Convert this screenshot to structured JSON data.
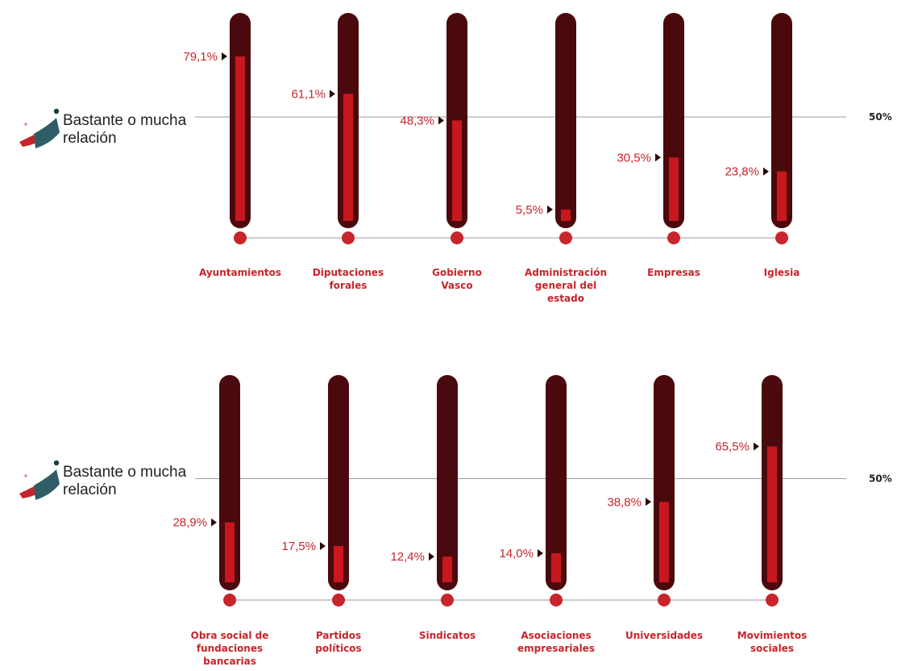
{
  "colors": {
    "tube": "#4a0a0d",
    "fill": "#c8181e",
    "accent": "#c8242b",
    "text_dark": "#222222",
    "line": "#999999",
    "arrow": "#2a0608"
  },
  "chart_data": [
    {
      "type": "bar",
      "legend": "Bastante o mucha relación",
      "reference_line": {
        "value": 50,
        "label": "50%"
      },
      "ylim": [
        0,
        100
      ],
      "categories": [
        "Ayuntamientos",
        "Diputaciones forales",
        "Gobierno Vasco",
        "Administración general del estado",
        "Empresas",
        "Iglesia"
      ],
      "category_lines": [
        [
          "Ayuntamientos"
        ],
        [
          "Diputaciones",
          "forales"
        ],
        [
          "Gobierno",
          "Vasco"
        ],
        [
          "Administración",
          "general del",
          "estado"
        ],
        [
          "Empresas"
        ],
        [
          "Iglesia"
        ]
      ],
      "values": [
        79.1,
        61.1,
        48.3,
        5.5,
        30.5,
        23.8
      ],
      "value_labels": [
        "79,1%",
        "61,1%",
        "48,3%",
        "5,5%",
        "30,5%",
        "23,8%"
      ]
    },
    {
      "type": "bar",
      "legend": "Bastante o mucha relación",
      "reference_line": {
        "value": 50,
        "label": "50%"
      },
      "ylim": [
        0,
        100
      ],
      "categories": [
        "Obra social de fundaciones bancarias",
        "Partidos políticos",
        "Sindicatos",
        "Asociaciones empresariales",
        "Universidades",
        "Movimientos sociales"
      ],
      "category_lines": [
        [
          "Obra social de",
          "fundaciones",
          "bancarias"
        ],
        [
          "Partidos",
          "políticos"
        ],
        [
          "Sindicatos"
        ],
        [
          "Asociaciones",
          "empresariales"
        ],
        [
          "Universidades"
        ],
        [
          "Movimientos",
          "sociales"
        ]
      ],
      "values": [
        28.9,
        17.5,
        12.4,
        14.0,
        38.8,
        65.5
      ],
      "value_labels": [
        "28,9%",
        "17,5%",
        "12,4%",
        "14,0%",
        "38,8%",
        "65,5%"
      ]
    }
  ]
}
